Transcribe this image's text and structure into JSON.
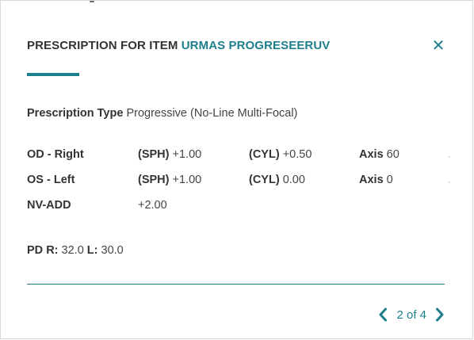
{
  "header": {
    "title_prefix": "PRESCRIPTION FOR ITEM",
    "item_name": "URMAS PROGRESEERUV",
    "close_symbol": "✕"
  },
  "prescription": {
    "type_label": "Prescription Type",
    "type_value": "Progressive (No-Line Multi-Focal)",
    "rows": [
      {
        "eye": "OD - Right",
        "sph_label": "(SPH)",
        "sph": "+1.00",
        "cyl_label": "(CYL)",
        "cyl": "+0.50",
        "axis_label": "Axis",
        "axis": "60"
      },
      {
        "eye": "OS - Left",
        "sph_label": "(SPH)",
        "sph": "+1.00",
        "cyl_label": "(CYL)",
        "cyl": "0.00",
        "axis_label": "Axis",
        "axis": "0"
      }
    ],
    "nv_add": {
      "label": "NV-ADD",
      "value": "+2.00"
    },
    "pd": {
      "label": "PD",
      "r_label": "R:",
      "r": "32.0",
      "l_label": "L:",
      "l": "30.0"
    }
  },
  "pager": {
    "current_text": "2 of 4"
  },
  "icons": {
    "close": "close-icon",
    "prev": "chevron-left-icon",
    "next": "chevron-right-icon"
  },
  "colors": {
    "accent": "#1e7f8c",
    "text": "#333333"
  }
}
